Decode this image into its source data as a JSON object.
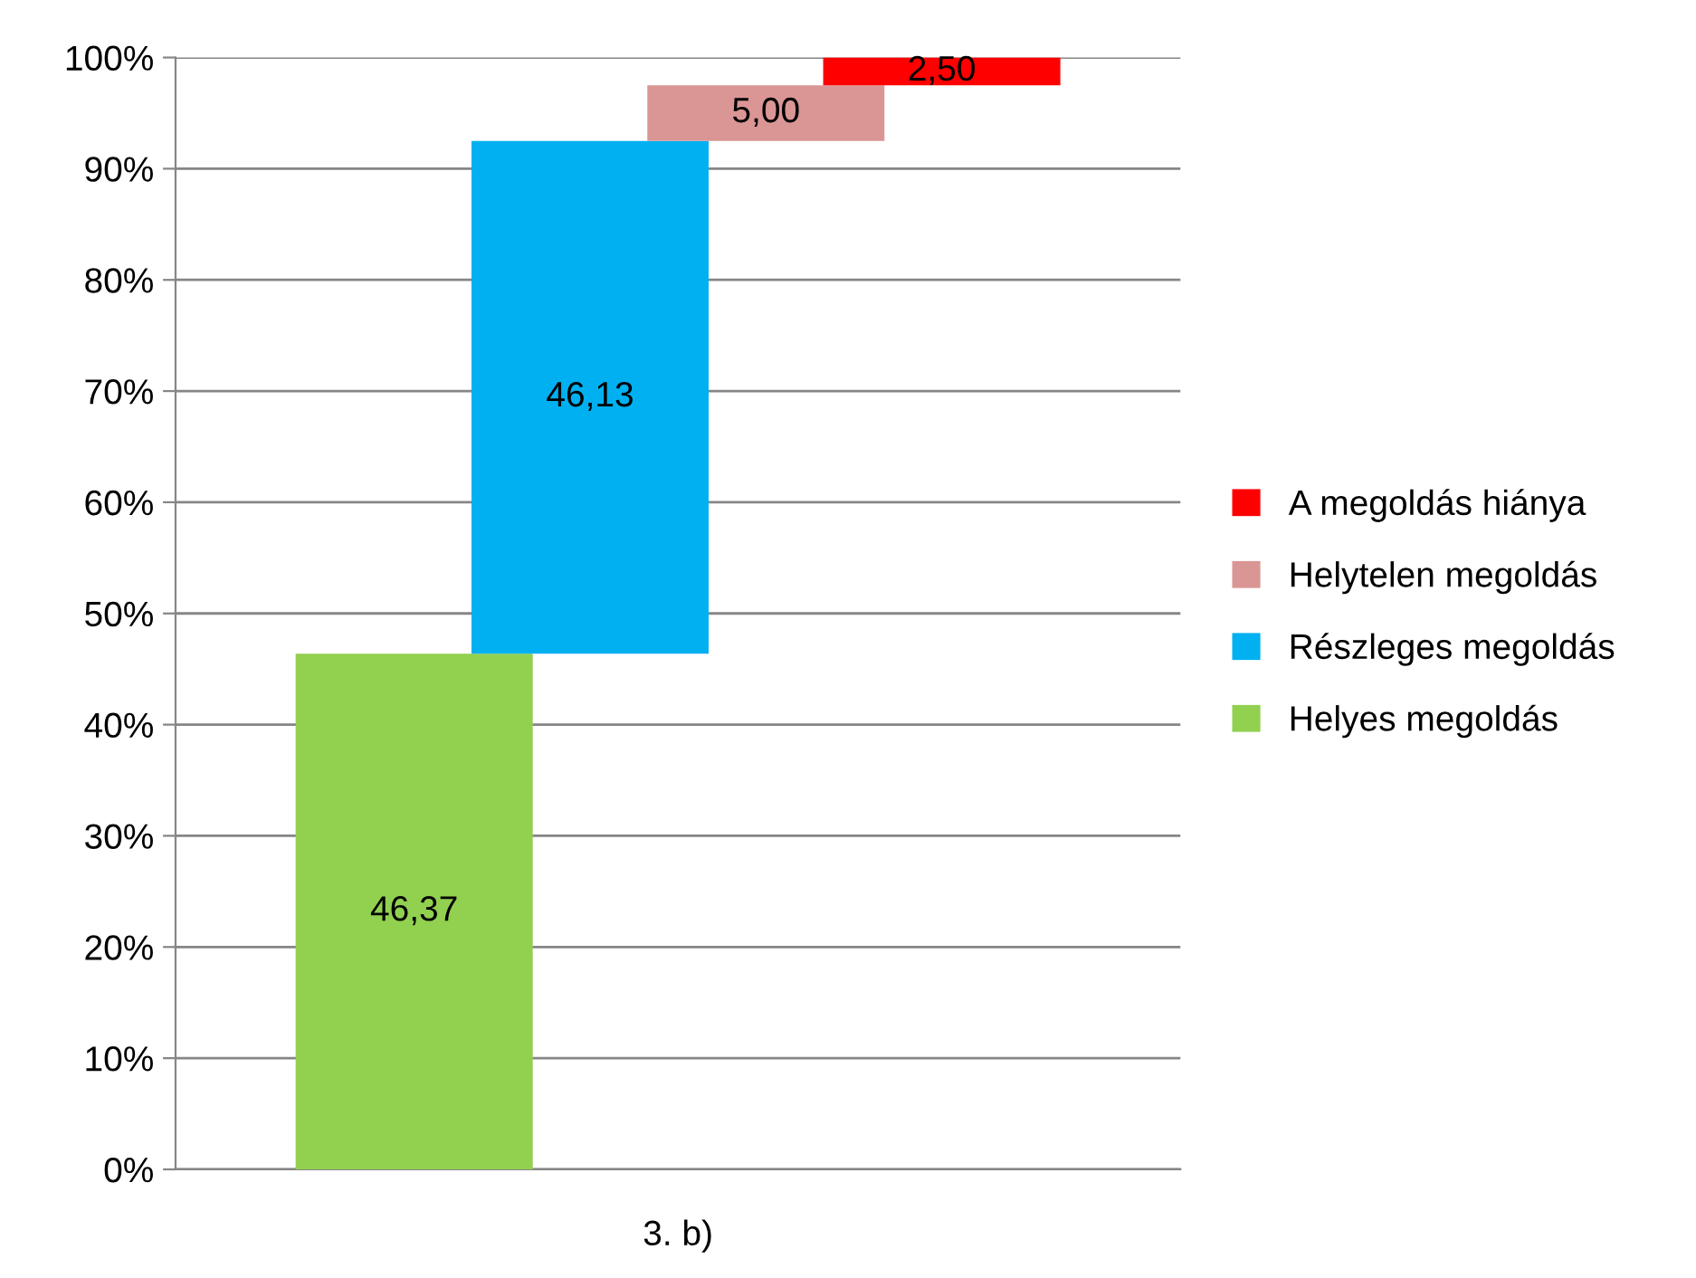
{
  "chart_data": {
    "type": "bar",
    "categories": [
      "3. b)"
    ],
    "series": [
      {
        "name": "Helyes megoldás",
        "color": "#92d050",
        "values": [
          46.37
        ],
        "base": [
          0
        ],
        "value_labels": [
          "46,37"
        ]
      },
      {
        "name": "Részleges megoldás",
        "color": "#00b0f0",
        "values": [
          46.13
        ],
        "base": [
          46.37
        ],
        "value_labels": [
          "46,13"
        ]
      },
      {
        "name": "Helytelen megoldás",
        "color": "#da9694",
        "values": [
          5.0
        ],
        "base": [
          92.5
        ],
        "value_labels": [
          "5,00"
        ]
      },
      {
        "name": "A megoldás hiánya",
        "color": "#ff0000",
        "values": [
          2.5
        ],
        "base": [
          97.5
        ],
        "value_labels": [
          "2,50"
        ]
      }
    ],
    "ylim": [
      0,
      100
    ],
    "yticks": [
      {
        "value": 0,
        "label": "0%"
      },
      {
        "value": 10,
        "label": "10%"
      },
      {
        "value": 20,
        "label": "20%"
      },
      {
        "value": 30,
        "label": "30%"
      },
      {
        "value": 40,
        "label": "40%"
      },
      {
        "value": 50,
        "label": "50%"
      },
      {
        "value": 60,
        "label": "60%"
      },
      {
        "value": 70,
        "label": "70%"
      },
      {
        "value": 80,
        "label": "80%"
      },
      {
        "value": 90,
        "label": "90%"
      },
      {
        "value": 100,
        "label": "100%"
      }
    ],
    "grid": "y",
    "legend": "right"
  }
}
